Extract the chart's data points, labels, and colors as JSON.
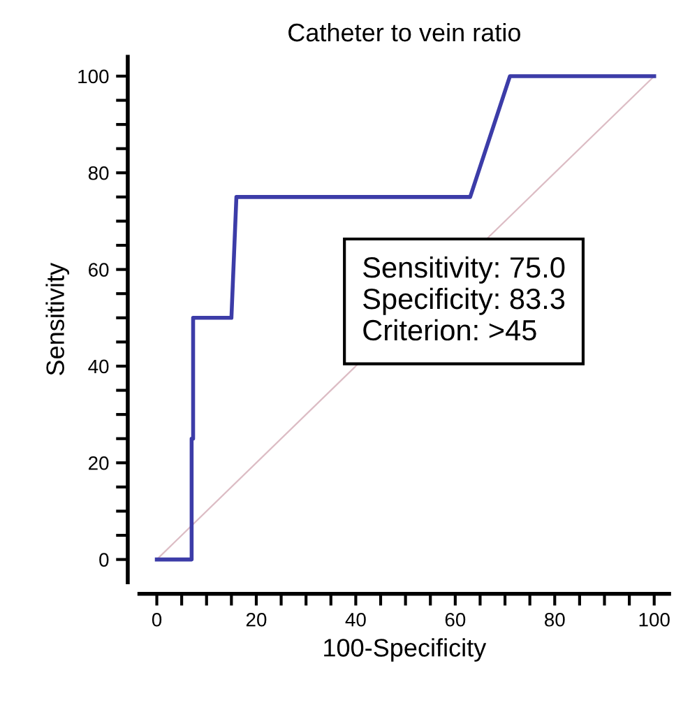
{
  "chart_data": {
    "type": "line",
    "title": "Catheter to vein ratio",
    "xlabel": "100-Specificity",
    "ylabel": "Sensitivity",
    "series": [
      {
        "color": "#3c3ca8",
        "x": [
          0,
          7,
          7,
          7.3,
          7.3,
          15,
          16,
          63,
          71,
          100
        ],
        "values": [
          0,
          0,
          25,
          25,
          50,
          50,
          75,
          75,
          100,
          100
        ]
      },
      {
        "color": "#dcbcc4",
        "x": [
          0,
          100
        ],
        "values": [
          0,
          100
        ]
      }
    ],
    "annotations": [
      "Sensitivity: 75.0\nSpecificity: 83.3\nCriterion: >45"
    ],
    "xlim": [
      -3.5,
      103
    ],
    "ylim": [
      -4.7,
      104
    ],
    "xticks": [
      0,
      {
        "value": 5,
        "label": null
      },
      {
        "value": 10,
        "label": null
      },
      {
        "value": 15,
        "label": null
      },
      20,
      {
        "value": 25,
        "label": null
      },
      {
        "value": 30,
        "label": null
      },
      {
        "value": 35,
        "label": null
      },
      40,
      {
        "value": 45,
        "label": null
      },
      {
        "value": 50,
        "label": null
      },
      {
        "value": 55,
        "label": null
      },
      60,
      {
        "value": 65,
        "label": null
      },
      {
        "value": 70,
        "label": null
      },
      {
        "value": 75,
        "label": null
      },
      80,
      {
        "value": 85,
        "label": null
      },
      {
        "value": 90,
        "label": null
      },
      {
        "value": 95,
        "label": null
      },
      100
    ],
    "yticks": [
      0,
      {
        "value": 5,
        "label": null
      },
      {
        "value": 10,
        "label": null
      },
      {
        "value": 15,
        "label": null
      },
      20,
      {
        "value": 25,
        "label": null
      },
      {
        "value": 30,
        "label": null
      },
      {
        "value": 35,
        "label": null
      },
      40,
      {
        "value": 45,
        "label": null
      },
      {
        "value": 50,
        "label": null
      },
      {
        "value": 55,
        "label": null
      },
      60,
      {
        "value": 65,
        "label": null
      },
      {
        "value": 70,
        "label": null
      },
      {
        "value": 75,
        "label": null
      },
      80,
      {
        "value": 85,
        "label": null
      },
      {
        "value": 90,
        "label": null
      },
      {
        "value": 95,
        "label": null
      },
      100
    ],
    "grid": false,
    "legend": false,
    "marker": "none",
    "line_style": "solid"
  }
}
